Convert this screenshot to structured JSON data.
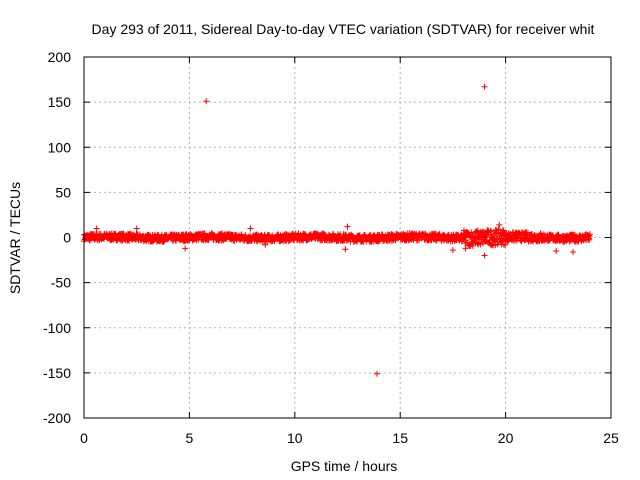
{
  "chart_data": {
    "type": "scatter",
    "title": "Day 293 of 2011, Sidereal Day-to-day VTEC variation (SDTVAR) for receiver whit",
    "xlabel": "GPS time / hours",
    "ylabel": "SDTVAR / TECUs",
    "xlim": [
      0,
      25
    ],
    "ylim": [
      -200,
      200
    ],
    "xticks": [
      0,
      5,
      10,
      15,
      20,
      25
    ],
    "yticks": [
      -200,
      -150,
      -100,
      -50,
      0,
      50,
      100,
      150,
      200
    ],
    "grid": true,
    "marker": "+",
    "color": "#ff0000",
    "series": [
      {
        "name": "SDTVAR",
        "dense_band": {
          "x_start": 0.0,
          "x_end": 24.0,
          "y_center": 0,
          "y_spread": 4
        },
        "points": [
          {
            "x": 5.8,
            "y": 151
          },
          {
            "x": 19.0,
            "y": 167
          },
          {
            "x": 13.9,
            "y": -151
          },
          {
            "x": 2.5,
            "y": 10
          },
          {
            "x": 7.9,
            "y": 10
          },
          {
            "x": 12.5,
            "y": 12
          },
          {
            "x": 19.7,
            "y": 14
          },
          {
            "x": 19.0,
            "y": -20
          },
          {
            "x": 22.4,
            "y": -15
          },
          {
            "x": 23.2,
            "y": -16
          },
          {
            "x": 12.4,
            "y": -13
          },
          {
            "x": 0.6,
            "y": 10
          },
          {
            "x": 8.6,
            "y": -8
          },
          {
            "x": 17.5,
            "y": -14
          },
          {
            "x": 4.8,
            "y": -12
          },
          {
            "x": 18.1,
            "y": -12
          }
        ]
      }
    ]
  }
}
